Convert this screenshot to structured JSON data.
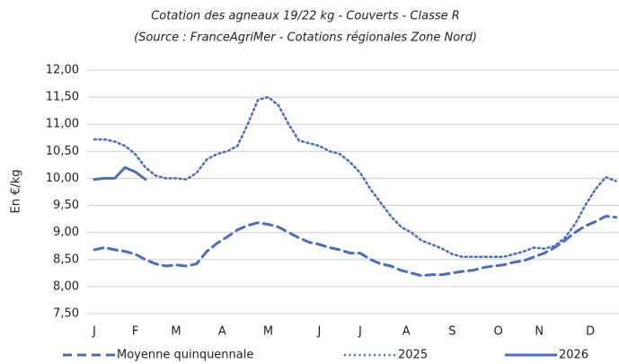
{
  "chart_data": {
    "type": "line",
    "title": "Cotation des agneaux 19/22 kg - Couverts - Classe R",
    "subtitle": "(Source : FranceAgriMer -  Cotations régionales Zone Nord)",
    "y_label": "En €/kg",
    "x": [
      1,
      2,
      3,
      4,
      5,
      6,
      7,
      8,
      9,
      10,
      11,
      12,
      13,
      14,
      15,
      16,
      17,
      18,
      19,
      20,
      21,
      22,
      23,
      24,
      25,
      26,
      27,
      28,
      29,
      30,
      31,
      32,
      33,
      34,
      35,
      36,
      37,
      38,
      39,
      40,
      41,
      42,
      43,
      44,
      45,
      46,
      47,
      48,
      49,
      50,
      51,
      52
    ],
    "xlim": [
      0.3,
      52.3
    ],
    "xticks": [
      {
        "value": 1,
        "label": "J"
      },
      {
        "value": 5,
        "label": "F"
      },
      {
        "value": 9,
        "label": "M"
      },
      {
        "value": 13.5,
        "label": "A"
      },
      {
        "value": 18,
        "label": "M"
      },
      {
        "value": 23,
        "label": "J"
      },
      {
        "value": 27,
        "label": "J"
      },
      {
        "value": 31.5,
        "label": "A"
      },
      {
        "value": 36,
        "label": "S"
      },
      {
        "value": 40.5,
        "label": "O"
      },
      {
        "value": 44.5,
        "label": "N"
      },
      {
        "value": 49.5,
        "label": "D"
      }
    ],
    "ylim": [
      7.5,
      12
    ],
    "yticks": [
      {
        "value": 7.5,
        "label": "7,50"
      },
      {
        "value": 8,
        "label": "8,00"
      },
      {
        "value": 8.5,
        "label": "8,50"
      },
      {
        "value": 9,
        "label": "9,00"
      },
      {
        "value": 9.5,
        "label": "9,50"
      },
      {
        "value": 10,
        "label": "10,00"
      },
      {
        "value": 10.5,
        "label": "10,50"
      },
      {
        "value": 11,
        "label": "11,00"
      },
      {
        "value": 11.5,
        "label": "11,50"
      },
      {
        "value": 12,
        "label": "12,00"
      }
    ],
    "grid": true,
    "legend": "bottom",
    "series": [
      {
        "name": "Moyenne quinquennale",
        "color": "#4a6cc3",
        "style": "dashed",
        "values": [
          8.68,
          8.72,
          8.68,
          8.65,
          8.6,
          8.5,
          8.42,
          8.38,
          8.4,
          8.38,
          8.42,
          8.65,
          8.8,
          8.92,
          9.05,
          9.13,
          9.18,
          9.15,
          9.1,
          9.0,
          8.9,
          8.82,
          8.78,
          8.72,
          8.68,
          8.62,
          8.62,
          8.5,
          8.42,
          8.38,
          8.3,
          8.25,
          8.2,
          8.22,
          8.22,
          8.25,
          8.28,
          8.3,
          8.35,
          8.38,
          8.4,
          8.45,
          8.48,
          8.55,
          8.62,
          8.72,
          8.85,
          9.0,
          9.12,
          9.2,
          9.3,
          9.28
        ]
      },
      {
        "name": "2025",
        "color": "#4a6cc3",
        "style": "dotted",
        "values": [
          10.72,
          10.72,
          10.68,
          10.6,
          10.45,
          10.2,
          10.05,
          10.0,
          10.0,
          9.98,
          10.1,
          10.35,
          10.45,
          10.5,
          10.6,
          11.0,
          11.45,
          11.5,
          11.35,
          11.0,
          10.7,
          10.65,
          10.6,
          10.5,
          10.45,
          10.3,
          10.1,
          9.8,
          9.55,
          9.3,
          9.1,
          9.0,
          8.85,
          8.78,
          8.7,
          8.6,
          8.55,
          8.55,
          8.55,
          8.55,
          8.55,
          8.6,
          8.65,
          8.72,
          8.7,
          8.75,
          8.9,
          9.15,
          9.5,
          9.8,
          10.02,
          9.95
        ]
      },
      {
        "name": "2026",
        "color": "#4a6cc3",
        "style": "solid",
        "values": [
          9.98,
          10.0,
          10.0,
          10.2,
          10.12,
          9.98,
          null,
          null,
          null,
          null,
          null,
          null,
          null,
          null,
          null,
          null,
          null,
          null,
          null,
          null,
          null,
          null,
          null,
          null,
          null,
          null,
          null,
          null,
          null,
          null,
          null,
          null,
          null,
          null,
          null,
          null,
          null,
          null,
          null,
          null,
          null,
          null,
          null,
          null,
          null,
          null,
          null,
          null,
          null,
          null,
          null,
          null
        ]
      }
    ]
  }
}
